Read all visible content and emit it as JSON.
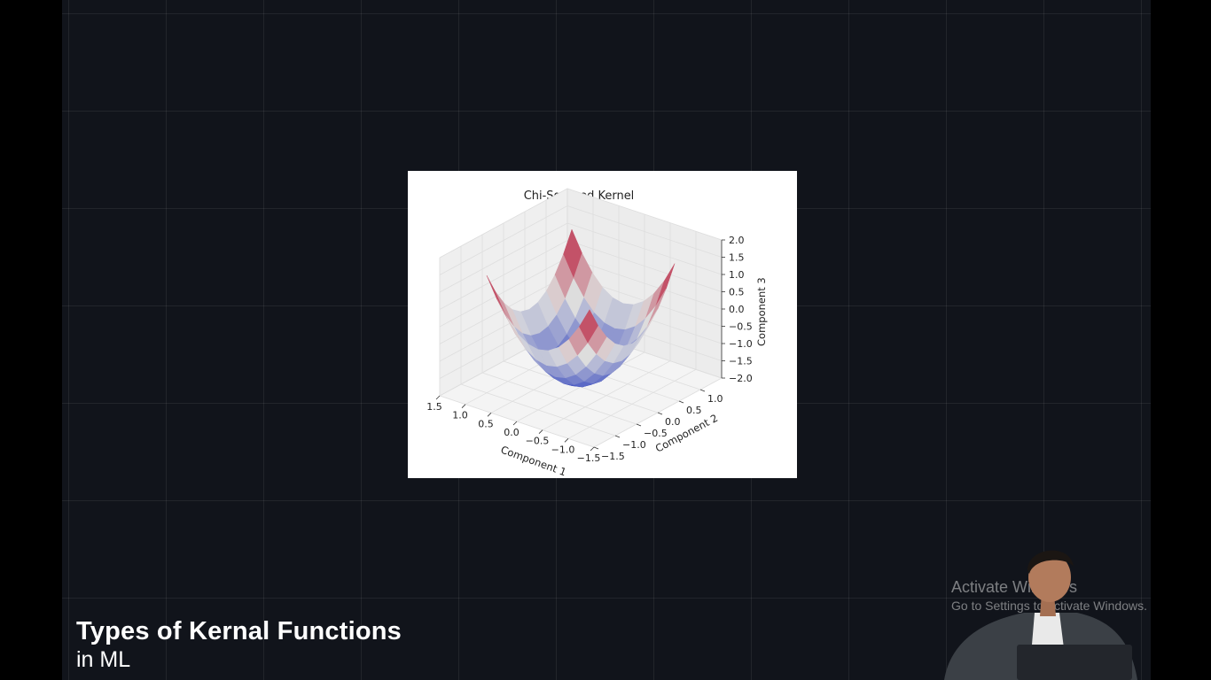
{
  "chart_data": {
    "type": "surface",
    "title": "Chi-Squared Kernel",
    "xlabel": "Component 1",
    "ylabel": "Component 2",
    "zlabel": "Component 3",
    "xlim": [
      -1.5,
      1.5
    ],
    "ylim": [
      -1.5,
      1.5
    ],
    "zlim": [
      -2.0,
      2.0
    ],
    "x_ticks": [
      "−1.5",
      "−1.0",
      "−0.5",
      "0.0",
      "0.5",
      "1.0",
      "1.5"
    ],
    "y_ticks": [
      "−1.5",
      "−1.0",
      "−0.5",
      "0.0",
      "0.5",
      "1.0"
    ],
    "z_ticks": [
      "2.0",
      "1.5",
      "1.0",
      "0.5",
      "0.0",
      "−0.5",
      "−1.0",
      "−1.5",
      "−2.0"
    ],
    "surface_grid": {
      "x_range": [
        -1.0,
        1.0
      ],
      "y_range": [
        -1.0,
        1.0
      ],
      "steps": 10
    },
    "z_min": -1.9,
    "z_max": 1.4,
    "colormap": "coolwarm",
    "grid": true
  },
  "caption": {
    "title": "Types of Kernal Functions",
    "subtitle": "in ML"
  },
  "watermark": {
    "title": "Activate Windows",
    "subtitle": "Go to Settings to activate Windows."
  },
  "colors": {
    "background": "#11141b",
    "low": "#3b4cc0",
    "mid": "#dddddd",
    "high": "#b40426"
  }
}
